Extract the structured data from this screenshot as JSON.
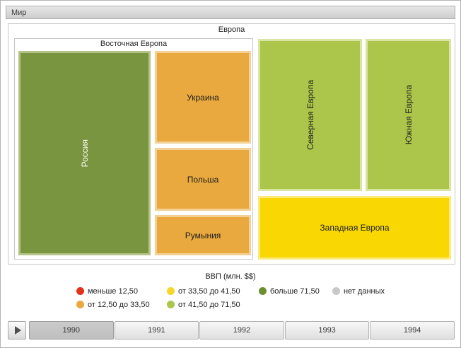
{
  "breadcrumb": {
    "label": "Мир"
  },
  "treemap": {
    "root": {
      "label": "Европа"
    },
    "eastern_group": {
      "label": "Восточная Европа"
    },
    "tiles": {
      "russia": {
        "label": "Россия",
        "fill": "#79953F",
        "border": "#B4C489",
        "text_color": "#FFFFFF"
      },
      "ukraine": {
        "label": "Украина",
        "fill": "#E9A93E",
        "border": "#F2D096",
        "text_color": "#1E1E1E"
      },
      "poland": {
        "label": "Польша",
        "fill": "#E9A93E",
        "border": "#F2D096",
        "text_color": "#1E1E1E"
      },
      "romania": {
        "label": "Румыния",
        "fill": "#E9A93E",
        "border": "#F2D096",
        "text_color": "#1E1E1E"
      },
      "northern": {
        "label": "Северная Европа",
        "fill": "#ABC64A",
        "border": "#D8E5A4",
        "text_color": "#1E1E1E"
      },
      "southern": {
        "label": "Южная Европа",
        "fill": "#ABC64A",
        "border": "#D8E5A4",
        "text_color": "#1E1E1E"
      },
      "western": {
        "label": "Западная Европа",
        "fill": "#F8D703",
        "border": "#FBEA7E",
        "text_color": "#1E1E1E"
      }
    }
  },
  "chart_data": {
    "type": "treemap",
    "drilldown_path": [
      "Мир",
      "Европа"
    ],
    "legend_title": "ВВП (млн. $$)",
    "color_bins": [
      {
        "label": "меньше 12,50",
        "color": "#E3321C"
      },
      {
        "label": "от 12,50 до 33,50",
        "color": "#E9A93E"
      },
      {
        "label": "от 33,50 до 41,50",
        "color": "#F5D629"
      },
      {
        "label": "от 41,50 до 71,50",
        "color": "#ABC64A"
      },
      {
        "label": "больше 71,50",
        "color": "#6E8F2F"
      },
      {
        "label": "нет данных",
        "color": "#C8C8C8"
      }
    ],
    "selected_year": "1990",
    "years": [
      "1990",
      "1991",
      "1992",
      "1993",
      "1994"
    ],
    "nodes": [
      {
        "path": [
          "Европа",
          "Восточная Европа",
          "Россия"
        ],
        "bin": "больше 71,50",
        "approx_area_share": 0.31
      },
      {
        "path": [
          "Европа",
          "Восточная Европа",
          "Украина"
        ],
        "bin": "от 12,50 до 33,50",
        "approx_area_share": 0.1
      },
      {
        "path": [
          "Европа",
          "Восточная Европа",
          "Польша"
        ],
        "bin": "от 12,50 до 33,50",
        "approx_area_share": 0.07
      },
      {
        "path": [
          "Европа",
          "Восточная Европа",
          "Румыния"
        ],
        "bin": "от 12,50 до 33,50",
        "approx_area_share": 0.05
      },
      {
        "path": [
          "Европа",
          "Северная Европа"
        ],
        "bin": "от 41,50 до 71,50",
        "approx_area_share": 0.18
      },
      {
        "path": [
          "Европа",
          "Южная Европа"
        ],
        "bin": "от 41,50 до 71,50",
        "approx_area_share": 0.15
      },
      {
        "path": [
          "Европа",
          "Западная Европа"
        ],
        "bin": "от 33,50 до 41,50",
        "approx_area_share": 0.14
      }
    ]
  }
}
